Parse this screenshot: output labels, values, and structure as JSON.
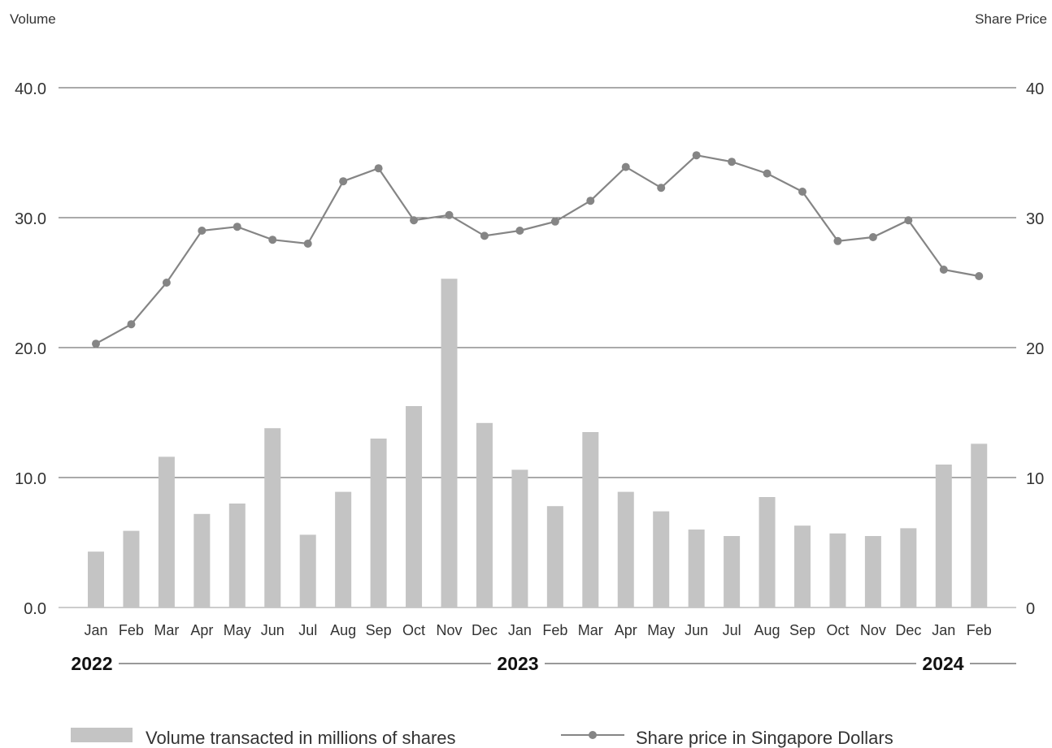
{
  "chart_data": {
    "type": "bar",
    "left_axis_title": "Volume",
    "right_axis_title": "Share Price",
    "left_ticks": [
      "0.0",
      "10.0",
      "20.0",
      "30.0",
      "40.0"
    ],
    "right_ticks": [
      "0",
      "10",
      "20",
      "30",
      "40"
    ],
    "ylim": [
      0,
      40
    ],
    "grid": true,
    "categories": [
      "Jan",
      "Feb",
      "Mar",
      "Apr",
      "May",
      "Jun",
      "Jul",
      "Aug",
      "Sep",
      "Oct",
      "Nov",
      "Dec",
      "Jan",
      "Feb",
      "Mar",
      "Apr",
      "May",
      "Jun",
      "Jul",
      "Aug",
      "Sep",
      "Oct",
      "Nov",
      "Dec",
      "Jan",
      "Feb"
    ],
    "years": [
      {
        "label": "2022",
        "start_index": 0
      },
      {
        "label": "2023",
        "start_index": 12
      },
      {
        "label": "2024",
        "start_index": 24
      }
    ],
    "series": [
      {
        "name": "Volume transacted in millions of shares",
        "type": "bar",
        "axis": "left",
        "color": "#c4c4c4",
        "values": [
          4.3,
          5.9,
          11.6,
          7.2,
          8.0,
          13.8,
          5.6,
          8.9,
          13.0,
          15.5,
          25.3,
          14.2,
          10.6,
          7.8,
          13.5,
          8.9,
          7.4,
          6.0,
          5.5,
          8.5,
          6.3,
          5.7,
          5.5,
          6.1,
          11.0,
          12.6
        ]
      },
      {
        "name": "Share price in Singapore Dollars",
        "type": "line",
        "axis": "right",
        "color": "#858585",
        "values": [
          20.3,
          21.8,
          25.0,
          29.0,
          29.3,
          28.3,
          28.0,
          32.8,
          33.8,
          29.8,
          30.2,
          28.6,
          29.0,
          29.7,
          31.3,
          33.9,
          32.3,
          34.8,
          34.3,
          33.4,
          32.0,
          28.2,
          28.5,
          29.8,
          26.0,
          25.5
        ]
      }
    ]
  }
}
